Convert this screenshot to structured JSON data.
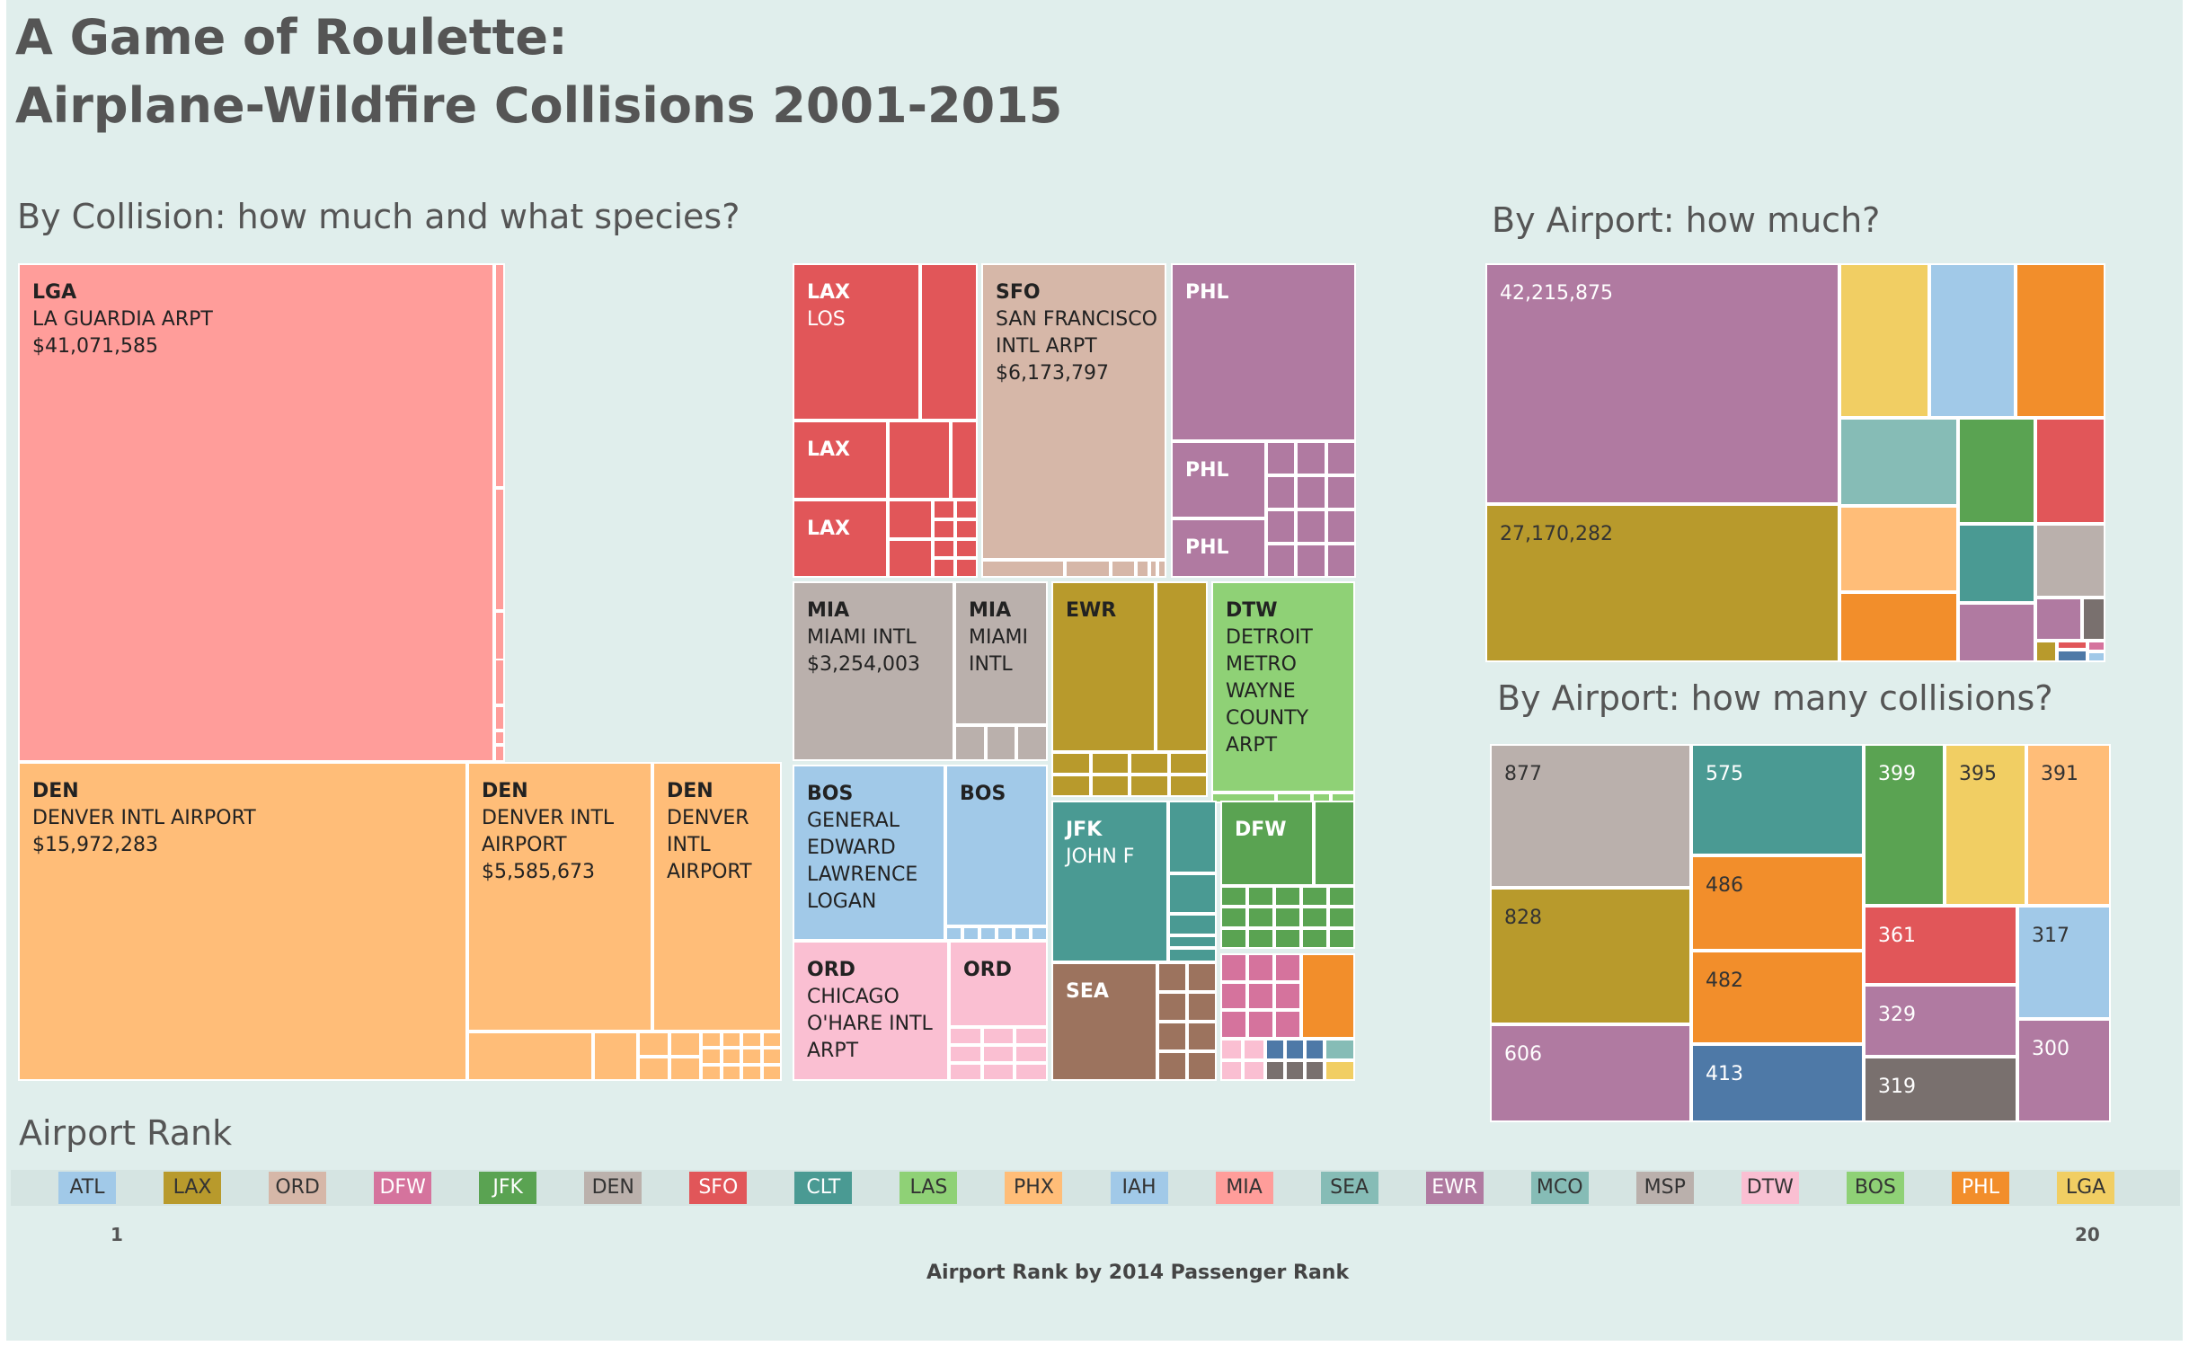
{
  "title_lines": [
    "A Game of Roulette:",
    "Airplane-Wildfire Collisions 2001-2015"
  ],
  "headings": {
    "collision": "By Collision: how much and what species?",
    "airport_cost": "By Airport: how much?",
    "airport_count": "By Airport: how many collisions?",
    "rank": "Airport Rank"
  },
  "chart_data": [
    {
      "type": "treemap",
      "title": "By Collision: how much and what species?",
      "labeled_tiles": [
        {
          "code": "LGA",
          "name": "LA GUARDIA ARPT",
          "value": "$41,071,585"
        },
        {
          "code": "DEN",
          "name": "DENVER INTL AIRPORT",
          "value": "$15,972,283"
        },
        {
          "code": "DEN",
          "name": "DENVER INTL AIRPORT",
          "value": "$5,585,673"
        },
        {
          "code": "DEN",
          "name": "DENVER INTL AIRPORT",
          "value": ""
        },
        {
          "code": "LAX",
          "name": "LOS",
          "value": ""
        },
        {
          "code": "LAX",
          "name": "",
          "value": ""
        },
        {
          "code": "LAX",
          "name": "",
          "value": ""
        },
        {
          "code": "SFO",
          "name": "SAN FRANCISCO INTL ARPT",
          "value": "$6,173,797"
        },
        {
          "code": "PHL",
          "name": "",
          "value": ""
        },
        {
          "code": "PHL",
          "name": "",
          "value": ""
        },
        {
          "code": "PHL",
          "name": "",
          "value": ""
        },
        {
          "code": "MIA",
          "name": "MIAMI INTL",
          "value": "$3,254,003"
        },
        {
          "code": "MIA",
          "name": "MIAMI INTL",
          "value": ""
        },
        {
          "code": "EWR",
          "name": "",
          "value": ""
        },
        {
          "code": "DTW",
          "name": "DETROIT METRO WAYNE COUNTY ARPT",
          "value": ""
        },
        {
          "code": "BOS",
          "name": "GENERAL EDWARD LAWRENCE LOGAN",
          "value": ""
        },
        {
          "code": "BOS",
          "name": "",
          "value": ""
        },
        {
          "code": "JFK",
          "name": "JOHN F",
          "value": ""
        },
        {
          "code": "DFW",
          "name": "",
          "value": ""
        },
        {
          "code": "ORD",
          "name": "CHICAGO O'HARE INTL ARPT",
          "value": ""
        },
        {
          "code": "ORD",
          "name": "",
          "value": ""
        },
        {
          "code": "SEA",
          "name": "",
          "value": ""
        }
      ]
    },
    {
      "type": "treemap",
      "title": "By Airport: how much?",
      "values": [
        42215875,
        27170282
      ],
      "value_labels": [
        "42,215,875",
        "27,170,282"
      ]
    },
    {
      "type": "treemap",
      "title": "By Airport: how many collisions?",
      "values": [
        877,
        828,
        606,
        575,
        486,
        482,
        413,
        399,
        395,
        391,
        361,
        329,
        319,
        317,
        300
      ],
      "value_labels": [
        "877",
        "828",
        "606",
        "575",
        "486",
        "482",
        "413",
        "399",
        "395",
        "391",
        "361",
        "329",
        "319",
        "317",
        "300"
      ]
    }
  ],
  "legend": {
    "title": "Airport Rank",
    "items": [
      {
        "code": "ATL",
        "color": "#a1c9e8",
        "text_color": "#333333"
      },
      {
        "code": "LAX",
        "color": "#b89a2c",
        "text_color": "#333333"
      },
      {
        "code": "ORD",
        "color": "#d6b7a8",
        "text_color": "#333333"
      },
      {
        "code": "DFW",
        "color": "#d5739d",
        "text_color": "#ffffff"
      },
      {
        "code": "JFK",
        "color": "#5aa352",
        "text_color": "#ffffff"
      },
      {
        "code": "DEN",
        "color": "#bbb1ac",
        "text_color": "#333333"
      },
      {
        "code": "SFO",
        "color": "#e15659",
        "text_color": "#ffffff"
      },
      {
        "code": "CLT",
        "color": "#4a9a93",
        "text_color": "#ffffff"
      },
      {
        "code": "LAS",
        "color": "#8fd176",
        "text_color": "#333333"
      },
      {
        "code": "PHX",
        "color": "#ffbd78",
        "text_color": "#333333"
      },
      {
        "code": "IAH",
        "color": "#a1c9e8",
        "text_color": "#333333"
      },
      {
        "code": "MIA",
        "color": "#ff9d9a",
        "text_color": "#333333"
      },
      {
        "code": "SEA",
        "color": "#86bcb6",
        "text_color": "#333333"
      },
      {
        "code": "EWR",
        "color": "#b07aa1",
        "text_color": "#ffffff"
      },
      {
        "code": "MCO",
        "color": "#86bcb6",
        "text_color": "#333333"
      },
      {
        "code": "MSP",
        "color": "#bab0ac",
        "text_color": "#333333"
      },
      {
        "code": "DTW",
        "color": "#fabfd2",
        "text_color": "#333333"
      },
      {
        "code": "BOS",
        "color": "#8fd176",
        "text_color": "#333333"
      },
      {
        "code": "PHL",
        "color": "#f28e2b",
        "text_color": "#ffffff"
      },
      {
        "code": "LGA",
        "color": "#f1ce63",
        "text_color": "#333333"
      }
    ],
    "rank_start": "1",
    "rank_end": "20",
    "axis_title": "Airport Rank by 2014 Passenger Rank"
  }
}
